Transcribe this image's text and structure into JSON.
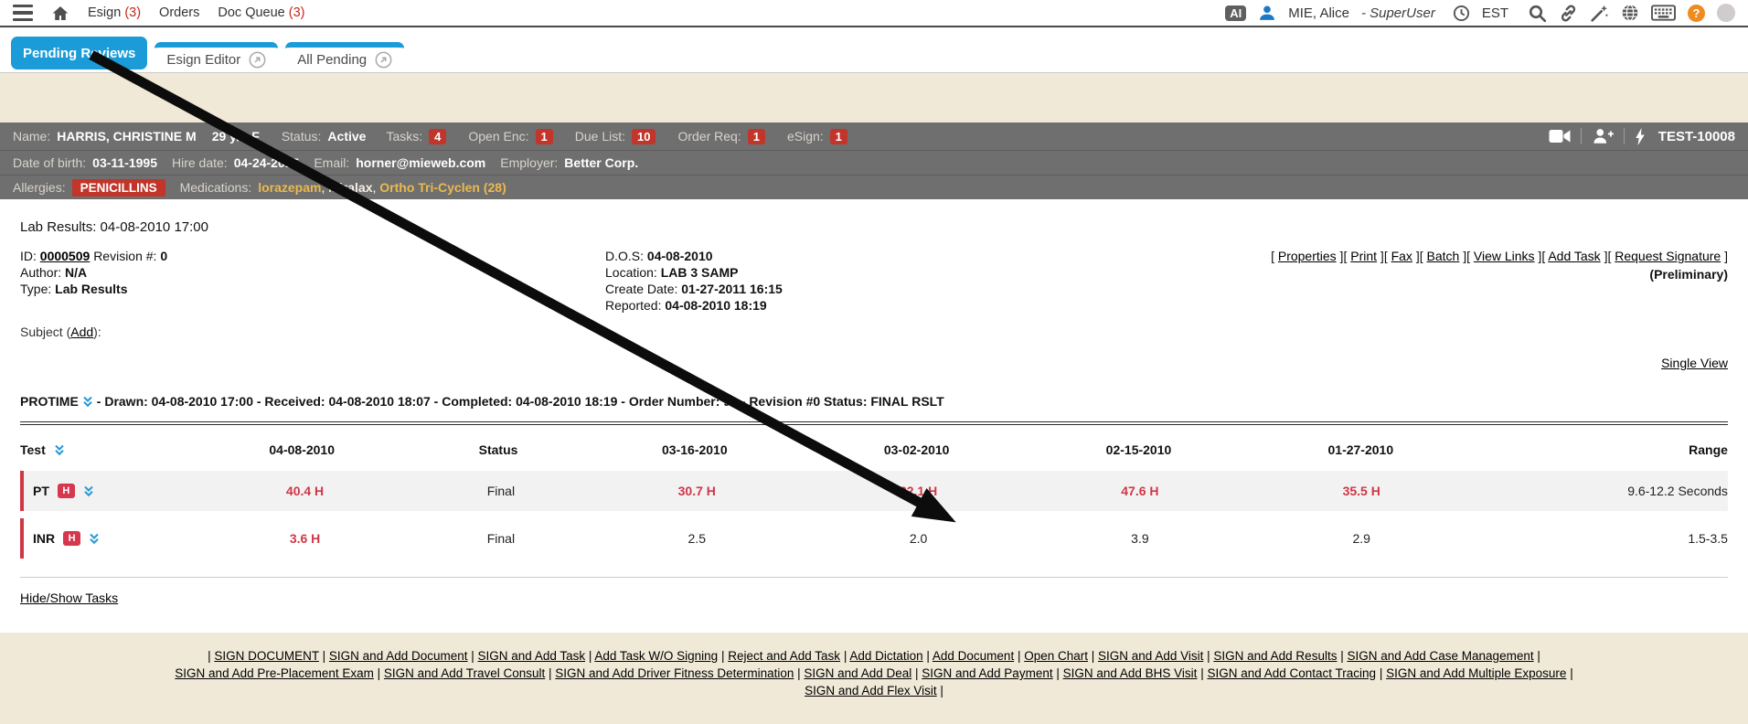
{
  "nav": {
    "items": [
      {
        "label": "Esign",
        "count": "(3)"
      },
      {
        "label": "Orders",
        "count": ""
      },
      {
        "label": "Doc Queue",
        "count": "(3)"
      }
    ],
    "right": {
      "ai_badge": "AI",
      "user": "MIE, Alice",
      "role": "- SuperUser",
      "timezone": "EST"
    }
  },
  "tabs": [
    {
      "label": "Pending Reviews",
      "active": true
    },
    {
      "label": "Esign Editor",
      "external": true
    },
    {
      "label": "All Pending",
      "external": true
    }
  ],
  "patient": {
    "name_label": "Name:",
    "name": "HARRIS, CHRISTINE M",
    "age_sex": "29 y/o F",
    "status_label": "Status:",
    "status": "Active",
    "counters": [
      {
        "label": "Tasks:",
        "value": "4"
      },
      {
        "label": "Open Enc:",
        "value": "1"
      },
      {
        "label": "Due List:",
        "value": "10"
      },
      {
        "label": "Order Req:",
        "value": "1"
      },
      {
        "label": "eSign:",
        "value": "1"
      }
    ],
    "chart_id": "TEST-10008",
    "dob_label": "Date of birth:",
    "dob": "03-11-1995",
    "hire_label": "Hire date:",
    "hire": "04-24-2015",
    "email_label": "Email:",
    "email": "horner@mieweb.com",
    "employer_label": "Employer:",
    "employer": "Better Corp.",
    "allergies_label": "Allergies:",
    "allergy": "PENICILLINS",
    "medications_label": "Medications:",
    "medications": [
      {
        "name": "lorazepam",
        "pale": false
      },
      {
        "name": "Miralax",
        "pale": true
      },
      {
        "name": "Ortho Tri-Cyclen (28)",
        "pale": false
      }
    ]
  },
  "document": {
    "title": "Lab Results: 04-08-2010 17:00",
    "id_label": "ID:",
    "id": "0000509",
    "revision_label": "Revision #:",
    "revision": "0",
    "author_label": "Author:",
    "author": "N/A",
    "type_label": "Type:",
    "type": "Lab Results",
    "dos_label": "D.O.S:",
    "dos": "04-08-2010",
    "location_label": "Location:",
    "location": "LAB 3 SAMP",
    "create_label": "Create Date:",
    "create": "01-27-2011 16:15",
    "reported_label": "Reported:",
    "reported": "04-08-2010 18:19",
    "actions": [
      "Properties",
      "Print",
      "Fax",
      "Batch",
      "View Links",
      "Add Task",
      "Request Signature"
    ],
    "preliminary": "(Preliminary)",
    "subject_prefix": "Subject (",
    "subject_add": "Add",
    "subject_suffix": "):",
    "single_view": "Single View"
  },
  "panel": {
    "title": "PROTIME",
    "meta": " - Drawn: 04-08-2010 17:00 - Received: 04-08-2010 18:07 - Completed: 04-08-2010 18:19 - Order Number: 99 - Revision #0 Status: FINAL RSLT"
  },
  "results_table": {
    "headers": [
      "Test",
      "04-08-2010",
      "Status",
      "03-16-2010",
      "03-02-2010",
      "02-15-2010",
      "01-27-2010",
      "Range"
    ],
    "rows": [
      {
        "test": "PT",
        "flag": "H",
        "shaded": true,
        "values": [
          {
            "v": "40.4 H",
            "red": true
          },
          {
            "v": "Final",
            "red": false
          },
          {
            "v": "30.7 H",
            "red": true
          },
          {
            "v": "22.1 H",
            "red": true
          },
          {
            "v": "47.6 H",
            "red": true
          },
          {
            "v": "35.5 H",
            "red": true
          }
        ],
        "range": "9.6-12.2 Seconds"
      },
      {
        "test": "INR",
        "flag": "H",
        "shaded": false,
        "values": [
          {
            "v": "3.6 H",
            "red": true
          },
          {
            "v": "Final",
            "red": false
          },
          {
            "v": "2.5",
            "red": false
          },
          {
            "v": "2.0",
            "red": false
          },
          {
            "v": "3.9",
            "red": false
          },
          {
            "v": "2.9",
            "red": false
          }
        ],
        "range": "1.5-3.5"
      }
    ]
  },
  "tasks_link": "Hide/Show Tasks",
  "footer": {
    "rows": [
      {
        "leading": true,
        "links": [
          "SIGN DOCUMENT",
          "SIGN and Add Document",
          "SIGN and Add Task",
          "Add Task W/O Signing",
          "Reject and Add Task",
          "Add Dictation",
          "Add Document",
          "Open Chart",
          "SIGN and Add Visit",
          "SIGN and Add Results",
          "SIGN and Add Case Management"
        ]
      },
      {
        "leading": false,
        "links": [
          "SIGN and Add Pre-Placement Exam",
          "SIGN and Add Travel Consult",
          "SIGN and Add Driver Fitness Determination",
          "SIGN and Add Deal",
          "SIGN and Add Payment",
          "SIGN and Add BHS Visit",
          "SIGN and Add Contact Tracing",
          "SIGN and Add Multiple Exposure"
        ]
      },
      {
        "leading": false,
        "links": [
          "SIGN and Add Flex Visit"
        ]
      }
    ]
  },
  "annotation": {
    "type": "arrow",
    "from": "Pending Reviews tab",
    "to": "SIGN and Add Visit link",
    "color": "#0c0c0c"
  },
  "colors": {
    "accent_blue": "#1b9bd7",
    "badge_red": "#c1352a",
    "result_red": "#cf3747",
    "bar_gray": "#6f6f6f",
    "page_beige": "#f0e9d7",
    "med_gold": "#eab94f"
  },
  "icons": {
    "nav_left": [
      "hamburger-menu",
      "home"
    ],
    "nav_right": [
      "ai-badge",
      "user",
      "clock",
      "search",
      "link",
      "magic-wand",
      "globe",
      "keyboard",
      "help",
      "avatar"
    ],
    "patient_bar": [
      "video-camera",
      "add-person",
      "lightning"
    ],
    "inline": [
      "chevron-double-down",
      "external-link"
    ]
  }
}
